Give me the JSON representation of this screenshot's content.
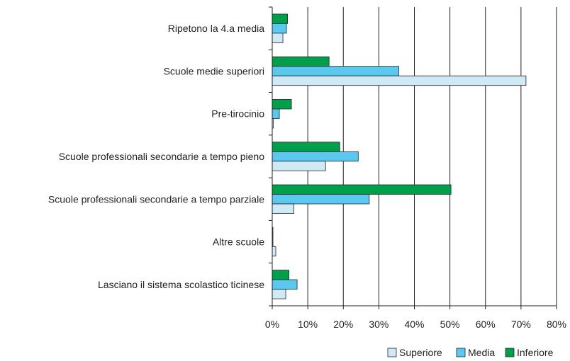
{
  "chart_data": {
    "type": "bar",
    "orientation": "horizontal",
    "categories": [
      "Ripetono la 4.a media",
      "Scuole medie superiori",
      "Pre-tirocinio",
      "Scuole professionali secondarie a tempo pieno",
      "Scuole professionali secondarie a tempo parziale",
      "Altre scuole",
      "Lasciano il sistema scolastico ticinese"
    ],
    "series": [
      {
        "name": "Inferiore",
        "color": "#00a04b",
        "values": [
          4.3,
          16.0,
          5.4,
          19.0,
          50.3,
          0.2,
          4.7
        ]
      },
      {
        "name": "Media",
        "color": "#5bc8f0",
        "values": [
          4.0,
          35.6,
          2.0,
          24.2,
          27.3,
          0.2,
          7.0
        ]
      },
      {
        "name": "Superiore",
        "color": "#cfe9f6",
        "values": [
          3.0,
          71.4,
          0.3,
          15.0,
          6.1,
          1.0,
          3.8
        ]
      }
    ],
    "xlim": [
      0,
      80
    ],
    "ticks": [
      "0%",
      "10%",
      "20%",
      "30%",
      "40%",
      "50%",
      "60%",
      "70%",
      "80%"
    ],
    "grid": true,
    "legend": {
      "position": "bottom-right",
      "items": [
        {
          "label": "Superiore",
          "color": "#cfe9f6"
        },
        {
          "label": "Media",
          "color": "#5bc8f0"
        },
        {
          "label": "Inferiore",
          "color": "#00a04b"
        }
      ]
    }
  }
}
